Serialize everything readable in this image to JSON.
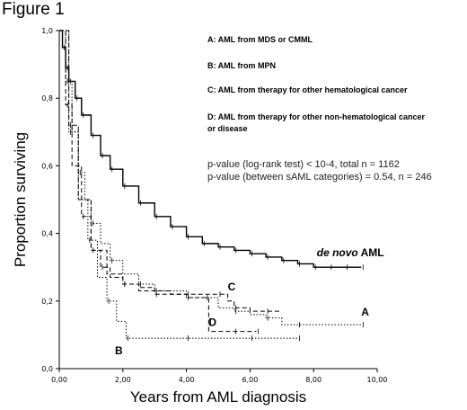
{
  "figure_title": "Figure 1",
  "chart_data": {
    "type": "line",
    "title": "",
    "xlabel": "Years from AML diagnosis",
    "ylabel": "Proportion surviving",
    "xlim": [
      0,
      10
    ],
    "ylim": [
      0,
      1
    ],
    "x_ticks": [
      0,
      2,
      4,
      6,
      8,
      10
    ],
    "x_tick_labels": [
      "0,00",
      "2,00",
      "4,00",
      "6,00",
      "8,00",
      "10,00"
    ],
    "y_ticks": [
      0,
      0.2,
      0.4,
      0.6,
      0.8,
      1.0
    ],
    "y_tick_labels": [
      "0,0",
      "0,2",
      "0,4",
      "0,6",
      "0,8",
      "1,0"
    ],
    "grid": false,
    "legend": {
      "placement": "top-right",
      "entries": [
        "A: AML from MDS or CMML",
        "B: AML from MPN",
        "C: AML from therapy for other hematological cancer",
        "D: AML from therapy for other non-hematological cancer or disease"
      ]
    },
    "annotations": [
      "p-value (log-rank test) < 10-4, total n = 1162",
      "p-value (between sAML categories) = 0.54, n = 246"
    ],
    "series": [
      {
        "name": "de novo AML",
        "style": "solid",
        "x": [
          0,
          0.1,
          0.2,
          0.3,
          0.5,
          0.7,
          1.0,
          1.3,
          1.6,
          2.0,
          2.5,
          3.0,
          3.5,
          4.0,
          4.5,
          5.0,
          5.5,
          6.0,
          6.5,
          7.0,
          7.5,
          8.0,
          8.5,
          9.0,
          9.5
        ],
        "values": [
          1.0,
          0.95,
          0.89,
          0.85,
          0.8,
          0.75,
          0.69,
          0.63,
          0.59,
          0.54,
          0.49,
          0.45,
          0.42,
          0.39,
          0.37,
          0.36,
          0.35,
          0.34,
          0.33,
          0.32,
          0.31,
          0.3,
          0.3,
          0.3,
          0.3
        ]
      },
      {
        "name": "A",
        "style": "dotted",
        "x": [
          0,
          0.2,
          0.4,
          0.6,
          0.8,
          1.0,
          1.3,
          1.6,
          2.0,
          2.5,
          3.0,
          4.0,
          5.0,
          5.5,
          6.0,
          6.5,
          7.0,
          7.5,
          8.0,
          9.5
        ],
        "values": [
          1.0,
          0.85,
          0.7,
          0.58,
          0.5,
          0.43,
          0.37,
          0.32,
          0.28,
          0.25,
          0.23,
          0.21,
          0.18,
          0.17,
          0.16,
          0.15,
          0.13,
          0.13,
          0.13,
          0.13
        ]
      },
      {
        "name": "B",
        "style": "dotted",
        "x": [
          0,
          0.3,
          0.6,
          0.9,
          1.2,
          1.5,
          1.8,
          2.1,
          3.0,
          4.0,
          5.0,
          6.0,
          7.0,
          7.5
        ],
        "values": [
          1.0,
          0.7,
          0.5,
          0.38,
          0.27,
          0.2,
          0.14,
          0.09,
          0.09,
          0.09,
          0.09,
          0.09,
          0.09,
          0.09
        ]
      },
      {
        "name": "C",
        "style": "dashed",
        "x": [
          0,
          0.2,
          0.4,
          0.7,
          1.0,
          1.3,
          1.6,
          2.0,
          2.5,
          3.0,
          3.5,
          4.0,
          4.5,
          5.0,
          5.3,
          5.5,
          6.0,
          6.5,
          7.0
        ],
        "values": [
          1.0,
          0.78,
          0.6,
          0.45,
          0.35,
          0.3,
          0.27,
          0.25,
          0.24,
          0.23,
          0.22,
          0.22,
          0.22,
          0.22,
          0.2,
          0.18,
          0.17,
          0.17,
          0.17
        ]
      },
      {
        "name": "D",
        "style": "dashed",
        "x": [
          0,
          0.3,
          0.6,
          1.0,
          1.5,
          2.0,
          2.5,
          3.0,
          4.0,
          4.6,
          4.7,
          5.5,
          6.0,
          6.2
        ],
        "values": [
          1.0,
          0.72,
          0.5,
          0.35,
          0.28,
          0.25,
          0.23,
          0.22,
          0.21,
          0.21,
          0.11,
          0.11,
          0.11,
          0.11
        ]
      }
    ]
  }
}
